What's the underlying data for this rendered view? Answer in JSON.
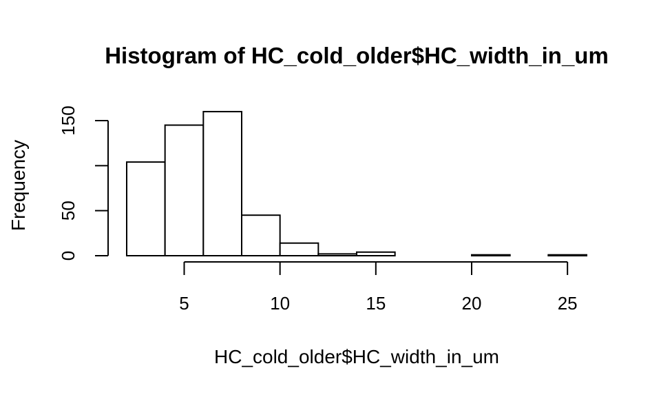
{
  "chart_data": {
    "type": "bar",
    "title": "Histogram of HC_cold_older$HC_width_in_um",
    "xlabel": "HC_cold_older$HC_width_in_um",
    "ylabel": "Frequency",
    "bin_edges": [
      2,
      4,
      6,
      8,
      10,
      12,
      14,
      16,
      18,
      20,
      22,
      24,
      26
    ],
    "values": [
      104,
      145,
      160,
      45,
      14,
      2,
      4,
      0,
      0,
      1,
      0,
      1
    ],
    "xlim": [
      2,
      26
    ],
    "ylim": [
      0,
      160
    ],
    "x_ticks": [
      5,
      10,
      15,
      20,
      25
    ],
    "y_ticks": [
      0,
      50,
      100,
      150
    ],
    "y_tick_labels": [
      "0",
      "50",
      "",
      "150"
    ],
    "grid": false,
    "legend": "none"
  },
  "colors": {
    "bar_fill": "#ffffff",
    "bar_stroke": "#000000",
    "text": "#000000",
    "background": "#ffffff"
  }
}
